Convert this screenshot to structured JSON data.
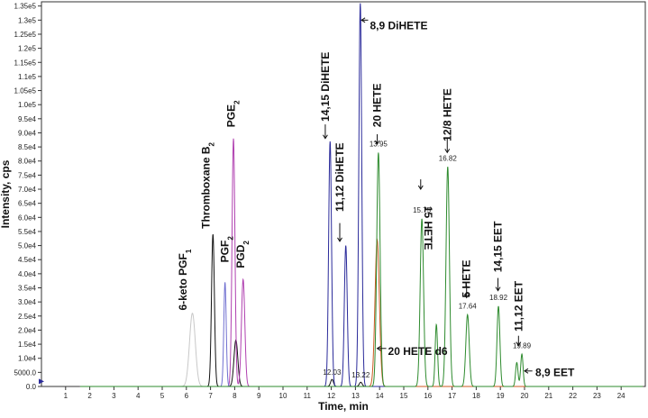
{
  "chart_data": {
    "type": "line",
    "title": "",
    "xlabel": "Time, min",
    "ylabel": "Intensity, cps",
    "xlim": [
      0,
      25
    ],
    "ylim": [
      0,
      136500
    ],
    "grid": false,
    "x_ticks": [
      "1",
      "2",
      "3",
      "4",
      "5",
      "6",
      "7",
      "8",
      "9",
      "10",
      "11",
      "12",
      "13",
      "14",
      "15",
      "16",
      "17",
      "18",
      "19",
      "20",
      "21",
      "22",
      "23",
      "24"
    ],
    "y_ticks": [
      {
        "value": 0,
        "label": "0.0"
      },
      {
        "value": 5000,
        "label": "5000.0"
      },
      {
        "value": 10000,
        "label": "1.0e4"
      },
      {
        "value": 15000,
        "label": "1.5e4"
      },
      {
        "value": 20000,
        "label": "2.0e4"
      },
      {
        "value": 25000,
        "label": "2.5e4"
      },
      {
        "value": 30000,
        "label": "3.0e4"
      },
      {
        "value": 35000,
        "label": "3.5e4"
      },
      {
        "value": 40000,
        "label": "4.0e4"
      },
      {
        "value": 45000,
        "label": "4.5e4"
      },
      {
        "value": 50000,
        "label": "5.0e4"
      },
      {
        "value": 55000,
        "label": "5.5e4"
      },
      {
        "value": 60000,
        "label": "6.0e4"
      },
      {
        "value": 65000,
        "label": "6.5e4"
      },
      {
        "value": 70000,
        "label": "7.0e4"
      },
      {
        "value": 75000,
        "label": "7.5e4"
      },
      {
        "value": 80000,
        "label": "8.0e4"
      },
      {
        "value": 85000,
        "label": "8.5e4"
      },
      {
        "value": 90000,
        "label": "9.0e4"
      },
      {
        "value": 95000,
        "label": "9.5e4"
      },
      {
        "value": 100000,
        "label": "1.0e5"
      },
      {
        "value": 105000,
        "label": "1.05e5"
      },
      {
        "value": 110000,
        "label": "1.1e5"
      },
      {
        "value": 115000,
        "label": "1.15e5"
      },
      {
        "value": 120000,
        "label": "1.2e5"
      },
      {
        "value": 125000,
        "label": "1.25e5"
      },
      {
        "value": 130000,
        "label": "1.3e5"
      },
      {
        "value": 135000,
        "label": "1.35e5"
      }
    ],
    "series": [
      {
        "color": "#c8c8c8",
        "peaks": [
          {
            "rt": 6.25,
            "height": 26000,
            "width": 0.12
          }
        ]
      },
      {
        "color": "#111111",
        "peaks": [
          {
            "rt": 7.1,
            "height": 54000,
            "width": 0.06
          },
          {
            "rt": 8.05,
            "height": 16500,
            "width": 0.08
          },
          {
            "rt": 12.03,
            "height": 2500,
            "width": 0.06
          },
          {
            "rt": 13.22,
            "height": 1500,
            "width": 0.06
          }
        ]
      },
      {
        "color": "#b040b0",
        "peaks": [
          {
            "rt": 7.95,
            "height": 88000,
            "width": 0.06
          },
          {
            "rt": 8.35,
            "height": 38000,
            "width": 0.07
          }
        ]
      },
      {
        "color": "#7070d0",
        "peaks": [
          {
            "rt": 7.6,
            "height": 37000,
            "width": 0.05
          }
        ]
      },
      {
        "color": "#2a2a9a",
        "peaks": [
          {
            "rt": 11.95,
            "height": 87000,
            "width": 0.06
          },
          {
            "rt": 12.6,
            "height": 50000,
            "width": 0.06
          },
          {
            "rt": 13.2,
            "height": 136000,
            "width": 0.06
          }
        ]
      },
      {
        "color": "#cc5a22",
        "peaks": [
          {
            "rt": 13.9,
            "height": 52000,
            "width": 0.09
          }
        ]
      },
      {
        "color": "#2e8b2e",
        "peaks": [
          {
            "rt": 13.95,
            "height": 83000,
            "width": 0.07
          },
          {
            "rt": 15.75,
            "height": 59500,
            "width": 0.07
          },
          {
            "rt": 16.35,
            "height": 22000,
            "width": 0.05
          },
          {
            "rt": 16.82,
            "height": 78000,
            "width": 0.07
          },
          {
            "rt": 17.64,
            "height": 25500,
            "width": 0.07
          },
          {
            "rt": 18.92,
            "height": 28500,
            "width": 0.06
          },
          {
            "rt": 19.68,
            "height": 8500,
            "width": 0.05
          },
          {
            "rt": 19.89,
            "height": 11500,
            "width": 0.05
          }
        ]
      }
    ],
    "retention_labels": [
      {
        "text": "12.03",
        "x": 12.03,
        "y": 3500
      },
      {
        "text": "13.22",
        "x": 13.22,
        "y": 2500
      },
      {
        "text": "13.95",
        "x": 13.95,
        "y": 84500
      },
      {
        "text": "15.75",
        "x": 15.75,
        "y": 61000
      },
      {
        "text": "16.82",
        "x": 16.82,
        "y": 79500
      },
      {
        "text": "17.64",
        "x": 17.64,
        "y": 27000
      },
      {
        "text": "18.92",
        "x": 18.92,
        "y": 30000
      },
      {
        "text": "19.89",
        "x": 19.89,
        "y": 13000
      }
    ],
    "annotations": [
      {
        "text": "6-keto PGF",
        "sub": "1",
        "rotated": true,
        "x": 6.0,
        "y": 27000
      },
      {
        "text": "Thromboxane B",
        "sub": "2",
        "rotated": true,
        "x": 6.95,
        "y": 56000
      },
      {
        "text": "PGF",
        "sub": "2",
        "rotated": true,
        "x": 7.75,
        "y": 44000
      },
      {
        "text": "PGE",
        "sub": "2",
        "rotated": true,
        "x": 8.0,
        "y": 92000
      },
      {
        "text": "PGD",
        "sub": "2",
        "rotated": true,
        "x": 8.4,
        "y": 42000
      },
      {
        "text": "14,15 DiHETE",
        "sub": "",
        "rotated": true,
        "x": 11.9,
        "y": 94000,
        "arrow": {
          "from": 93000,
          "to": 88000
        }
      },
      {
        "text": "11,12 DiHETE",
        "sub": "",
        "rotated": true,
        "x": 12.5,
        "y": 62000,
        "arrow": {
          "from": 58000,
          "to": 51500
        }
      },
      {
        "text": "8,9 DiHETE",
        "sub": "",
        "rotated": false,
        "x": 13.45,
        "y": 128000,
        "arrow_left": {
          "from": 13.45,
          "to": 13.25,
          "y": 130000
        }
      },
      {
        "text": "20 HETE",
        "sub": "",
        "rotated": true,
        "x": 14.05,
        "y": 92000,
        "arrow": {
          "from": 89500,
          "to": 86000
        }
      },
      {
        "text": "15 HETE",
        "sub": "",
        "rotated": true,
        "x": 15.85,
        "y": 64000,
        "arrow": {
          "from": 73500,
          "to": 70000
        },
        "upside": true
      },
      {
        "text": "12/8 HETE",
        "sub": "",
        "rotated": true,
        "x": 16.95,
        "y": 87000,
        "arrow": {
          "from": 88000,
          "to": 83000
        }
      },
      {
        "text": "5 HETE",
        "sub": "",
        "rotated": true,
        "x": 17.75,
        "y": 31500,
        "arrow": {
          "from": 36000,
          "to": 31500
        }
      },
      {
        "text": "14,15 EET",
        "sub": "",
        "rotated": true,
        "x": 19.05,
        "y": 40500,
        "arrow": {
          "from": 38500,
          "to": 34000
        }
      },
      {
        "text": "11,12 EET",
        "sub": "",
        "rotated": true,
        "x": 19.9,
        "y": 19500,
        "arrow": {
          "from": 18000,
          "to": 14500
        }
      },
      {
        "text": "20 HETE d6",
        "sub": "",
        "rotated": false,
        "x": 14.2,
        "y": 12500,
        "arrow_left": {
          "from": 14.2,
          "to": 13.9,
          "y": 13500
        }
      },
      {
        "text": "8,9 EET",
        "sub": "",
        "rotated": false,
        "x": 20.3,
        "y": 5000,
        "arrow_left": {
          "from": 20.25,
          "to": 20.0,
          "y": 5500
        }
      }
    ]
  }
}
